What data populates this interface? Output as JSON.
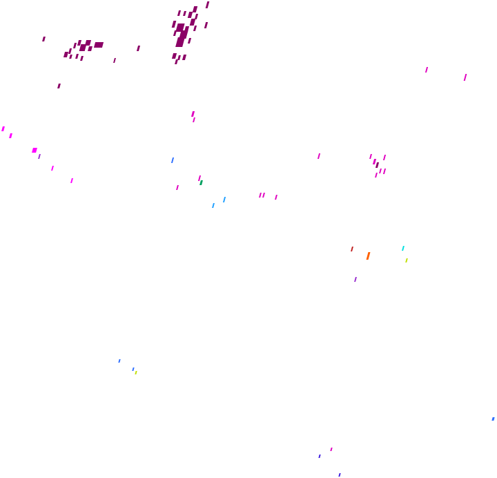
{
  "background": "#ffffff",
  "colors": {
    "dark_magenta": "#8b0066",
    "magenta": "#e000c0",
    "bright_magenta": "#ff00ff",
    "purple": "#9a30d0",
    "blue": "#3070ff",
    "sky_blue": "#20a0ff",
    "cyan": "#00e0e0",
    "green": "#00a060",
    "orange": "#ff6000",
    "red": "#c02020",
    "yellow_green": "#c0e000",
    "indigo": "#4020e0"
  }
}
